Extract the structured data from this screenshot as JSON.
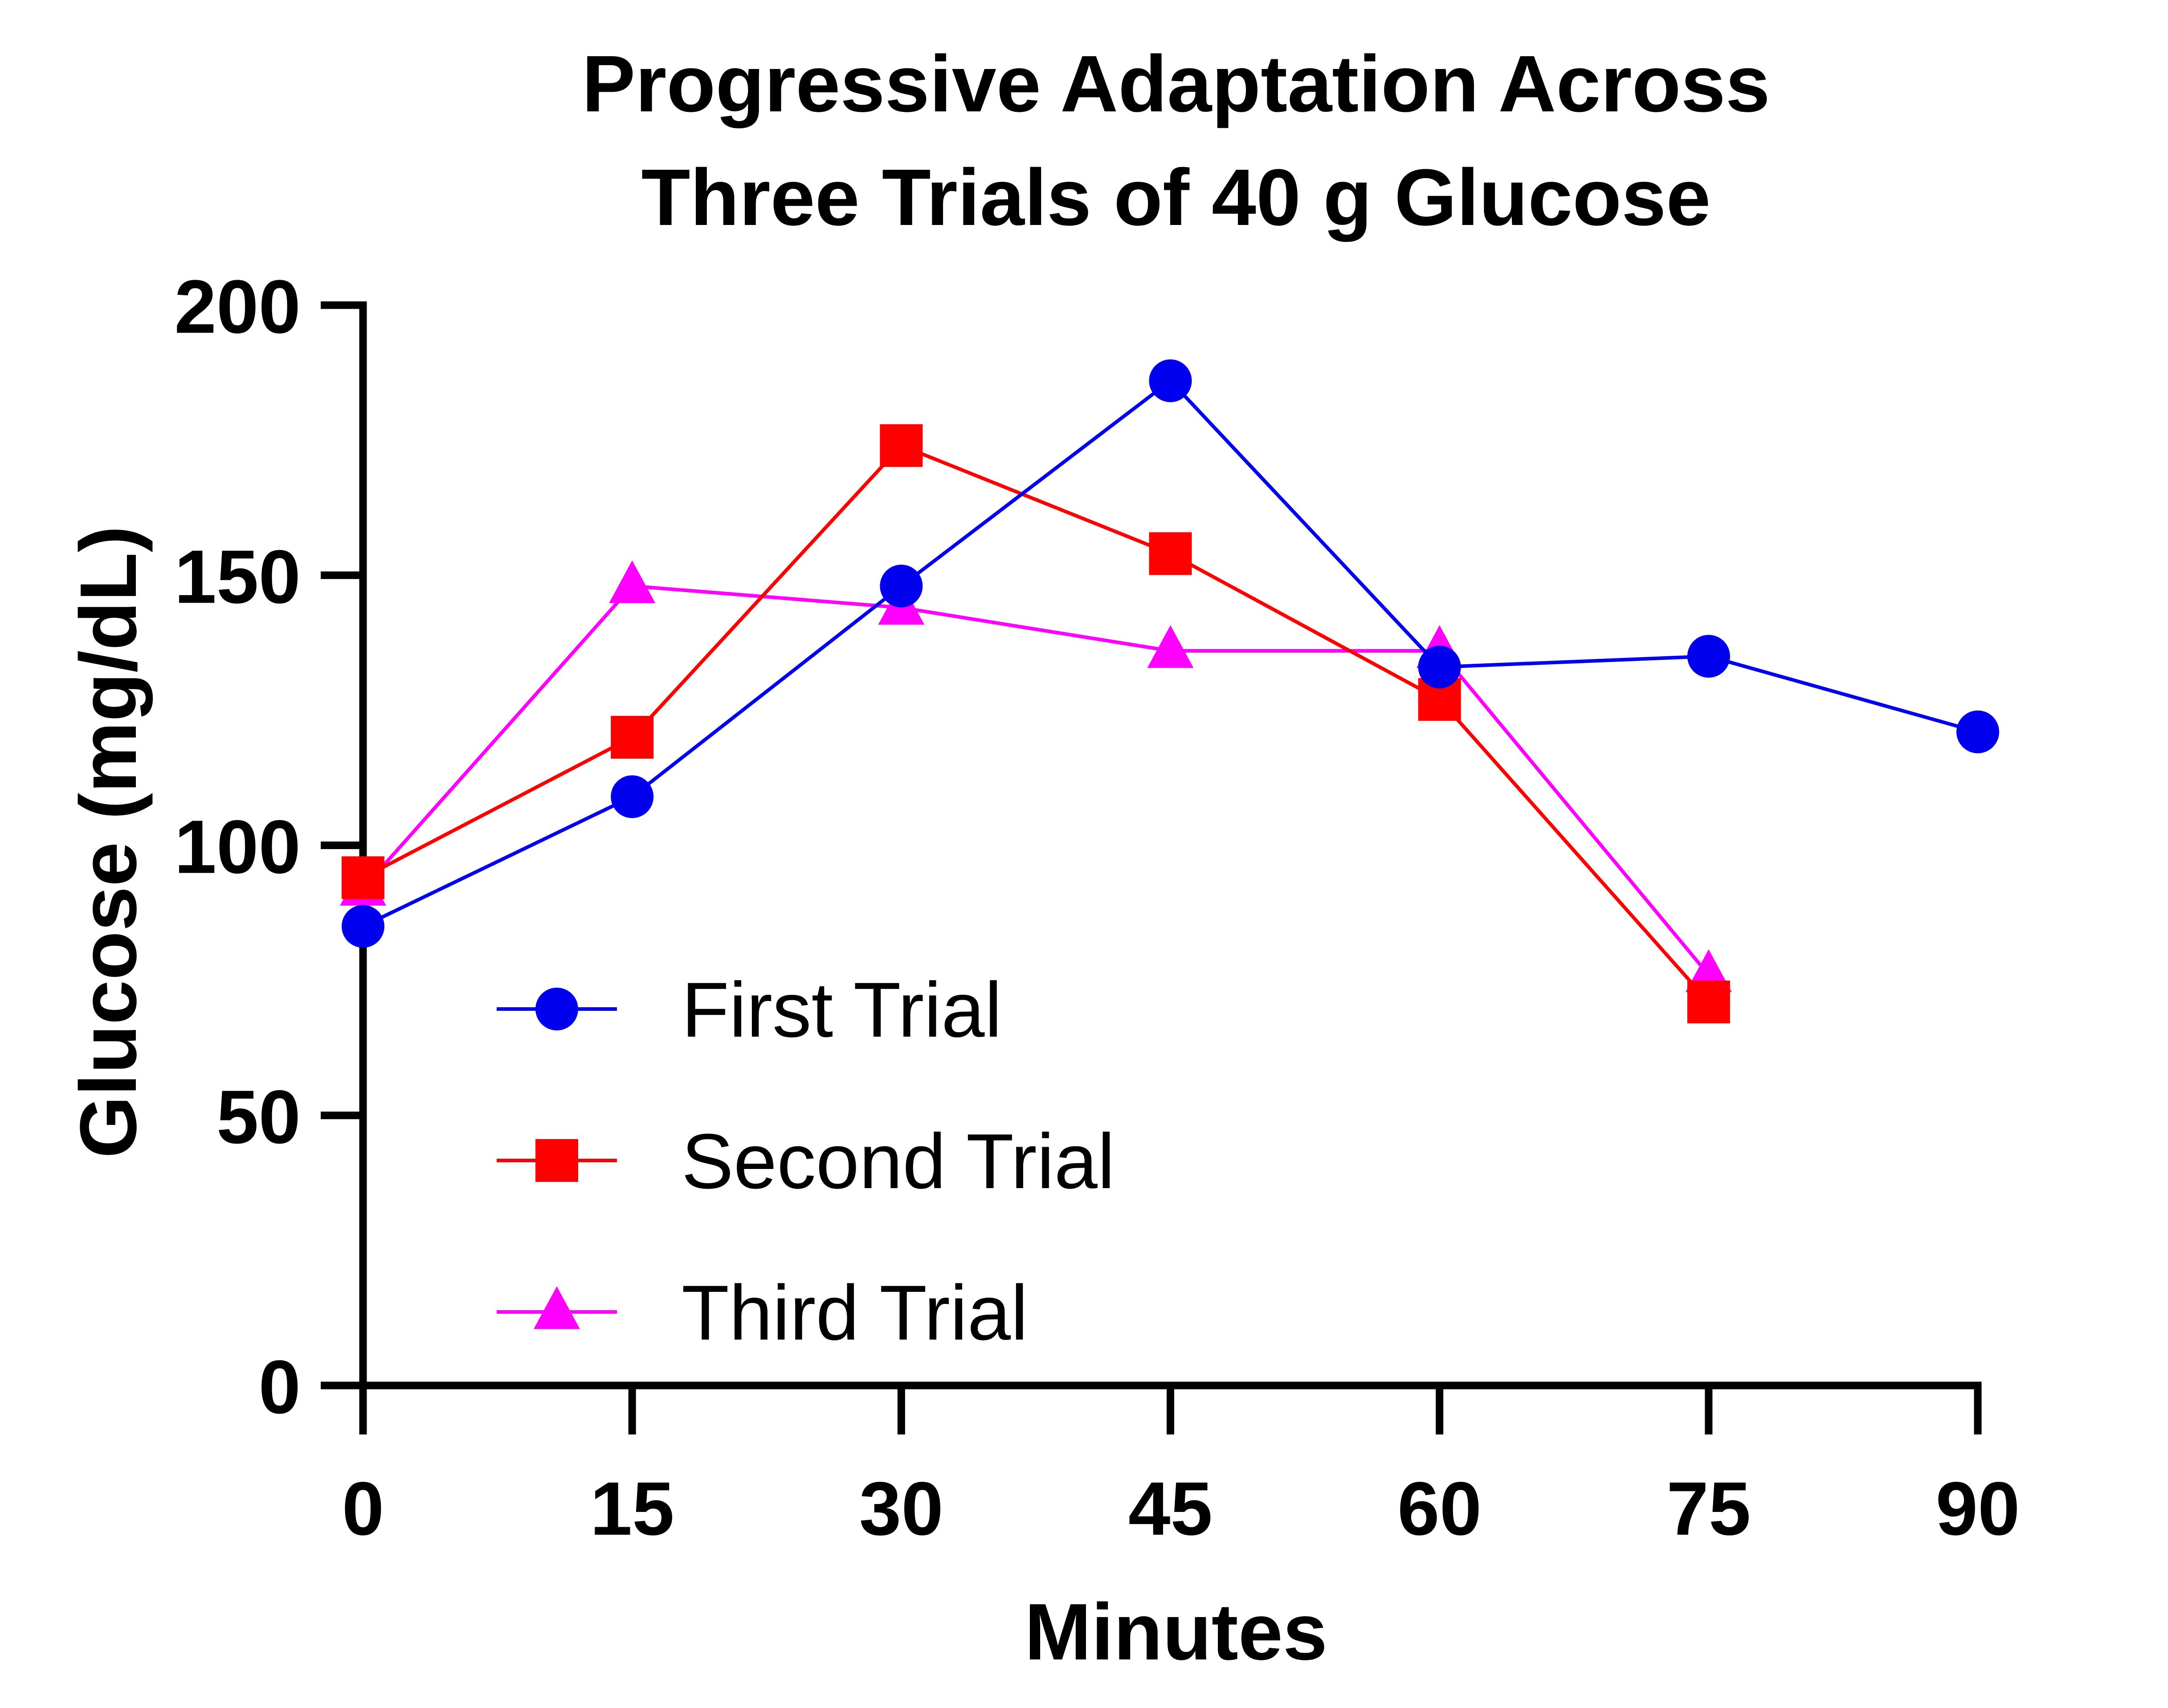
{
  "chart_data": {
    "type": "line",
    "title_lines": [
      "Progressive Adaptation Across",
      "Three Trials of 40 g Glucose"
    ],
    "xlabel": "Minutes",
    "ylabel": "Glucose (mg/dL)",
    "xlim": [
      0,
      90
    ],
    "ylim": [
      0,
      200
    ],
    "xticks": [
      "0",
      "15",
      "30",
      "45",
      "60",
      "75",
      "90"
    ],
    "yticks": [
      "0",
      "50",
      "100",
      "150",
      "200"
    ],
    "grid": false,
    "legend_position": "lower-left inside plot",
    "series": [
      {
        "name": "First Trial",
        "color": "#0000EE",
        "marker": "circle",
        "x": [
          0,
          15,
          30,
          45,
          60,
          75,
          90
        ],
        "y": [
          85,
          109,
          148,
          186,
          133,
          135,
          121
        ]
      },
      {
        "name": "Second Trial",
        "color": "#FF0000",
        "marker": "square",
        "x": [
          0,
          15,
          30,
          45,
          60,
          75
        ],
        "y": [
          94,
          120,
          174,
          154,
          127,
          71
        ]
      },
      {
        "name": "Third Trial",
        "color": "#FF00FF",
        "marker": "triangle",
        "x": [
          0,
          15,
          30,
          45,
          60,
          75
        ],
        "y": [
          92,
          148,
          144,
          136,
          136,
          76
        ]
      }
    ]
  }
}
